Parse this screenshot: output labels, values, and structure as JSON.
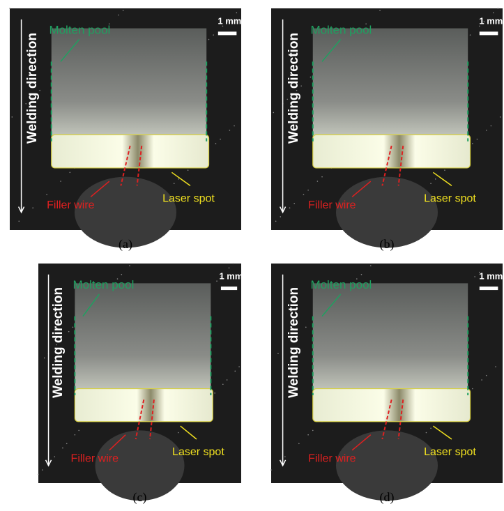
{
  "panels": [
    {
      "caption": "(a)",
      "direction_label": "Welding direction",
      "molten_pool": "Molten pool",
      "scale": "1 mm",
      "filler_wire": "Filler wire",
      "laser_spot": "Laser spot"
    },
    {
      "caption": "(b)",
      "direction_label": "Welding direction",
      "molten_pool": "Molten pool",
      "scale": "1 mm",
      "filler_wire": "Filler wire",
      "laser_spot": "Laser spot"
    },
    {
      "caption": "(c)",
      "direction_label": "Welding direction",
      "molten_pool": "Molten pool",
      "scale": "1 mm",
      "filler_wire": "Filler wire",
      "laser_spot": "Laser spot"
    },
    {
      "caption": "(d)",
      "direction_label": "Welding direction",
      "molten_pool": "Molten pool",
      "scale": "1 mm",
      "filler_wire": "Filler wire",
      "laser_spot": "Laser spot"
    }
  ]
}
